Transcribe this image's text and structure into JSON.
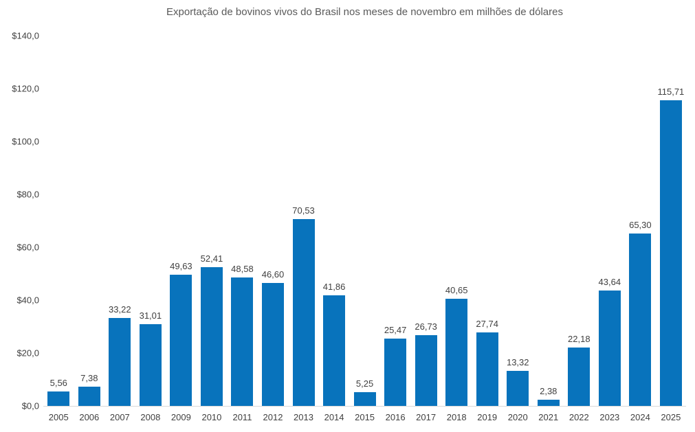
{
  "title": "Exportação de bovinos vivos do Brasil nos meses de novembro em milhões de dólares",
  "colors": {
    "bar": "#0873bc",
    "label_text": "#404040",
    "title_text": "#595959",
    "axis_line": "#d9d9d9",
    "background": "#ffffff"
  },
  "chart_data": {
    "type": "bar",
    "title": "Exportação de bovinos vivos do Brasil nos meses de novembro em milhões de dólares",
    "xlabel": "",
    "ylabel": "",
    "categories": [
      "2005",
      "2006",
      "2007",
      "2008",
      "2009",
      "2010",
      "2011",
      "2012",
      "2013",
      "2014",
      "2015",
      "2016",
      "2017",
      "2018",
      "2019",
      "2020",
      "2021",
      "2022",
      "2023",
      "2024",
      "2025"
    ],
    "values": [
      5.56,
      7.38,
      33.22,
      31.01,
      49.63,
      52.41,
      48.58,
      46.6,
      70.53,
      41.86,
      5.25,
      25.47,
      26.73,
      40.65,
      27.74,
      13.32,
      2.38,
      22.18,
      43.64,
      65.3,
      115.71
    ],
    "value_labels": [
      "5,56",
      "7,38",
      "33,22",
      "31,01",
      "49,63",
      "52,41",
      "48,58",
      "46,60",
      "70,53",
      "41,86",
      "5,25",
      "25,47",
      "26,73",
      "40,65",
      "27,74",
      "13,32",
      "2,38",
      "22,18",
      "43,64",
      "65,30",
      "115,71"
    ],
    "ylim": [
      0,
      140
    ],
    "y_ticks": [
      {
        "value": 0,
        "label": "$0,0"
      },
      {
        "value": 20,
        "label": "$20,0"
      },
      {
        "value": 40,
        "label": "$40,0"
      },
      {
        "value": 60,
        "label": "$60,0"
      },
      {
        "value": 80,
        "label": "$80,0"
      },
      {
        "value": 100,
        "label": "$100,0"
      },
      {
        "value": 120,
        "label": "$120,0"
      },
      {
        "value": 140,
        "label": "$140,0"
      }
    ],
    "grid": false,
    "legend_position": "none",
    "bar_color": "#0873bc"
  }
}
